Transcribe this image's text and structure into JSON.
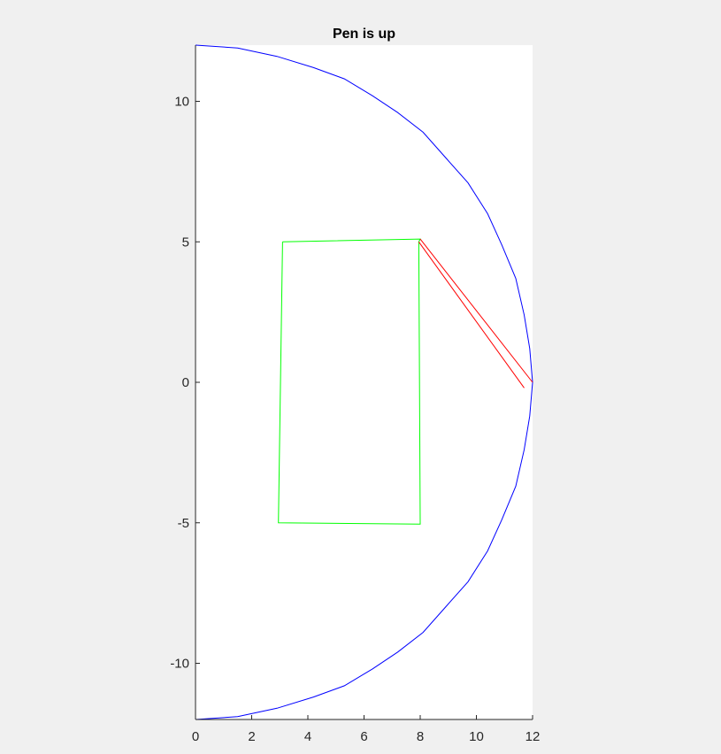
{
  "window": {
    "background": "#f0f0f0"
  },
  "chart_data": {
    "type": "line",
    "title": "Pen is up",
    "xlabel": "",
    "ylabel": "",
    "xlim": [
      0,
      12
    ],
    "ylim": [
      -12,
      12
    ],
    "xticks": [
      0,
      2,
      4,
      6,
      8,
      10,
      12
    ],
    "yticks": [
      -10,
      -5,
      0,
      5,
      10
    ],
    "grid": false,
    "legend": "none",
    "series": [
      {
        "color": "#0000ff",
        "points": [
          [
            0,
            12
          ],
          [
            1.5,
            11.9
          ],
          [
            2.9,
            11.6
          ],
          [
            4.2,
            11.2
          ],
          [
            5.3,
            10.8
          ],
          [
            6.3,
            10.2
          ],
          [
            7.2,
            9.6
          ],
          [
            8.1,
            8.9
          ],
          [
            8.9,
            8.0
          ],
          [
            9.7,
            7.1
          ],
          [
            10.4,
            6.0
          ],
          [
            10.9,
            4.9
          ],
          [
            11.4,
            3.7
          ],
          [
            11.7,
            2.4
          ],
          [
            11.9,
            1.2
          ],
          [
            12,
            0
          ],
          [
            11.9,
            -1.2
          ],
          [
            11.7,
            -2.4
          ],
          [
            11.4,
            -3.7
          ],
          [
            10.9,
            -4.9
          ],
          [
            10.4,
            -6.0
          ],
          [
            9.7,
            -7.1
          ],
          [
            8.9,
            -8.0
          ],
          [
            8.1,
            -8.9
          ],
          [
            7.2,
            -9.6
          ],
          [
            6.3,
            -10.2
          ],
          [
            5.3,
            -10.8
          ],
          [
            4.2,
            -11.2
          ],
          [
            2.9,
            -11.6
          ],
          [
            1.5,
            -11.9
          ],
          [
            0,
            -12
          ]
        ]
      },
      {
        "color": "#00ff00",
        "points": [
          [
            3.1,
            5.0
          ],
          [
            8.0,
            5.1
          ],
          [
            7.95,
            5.0
          ],
          [
            8.0,
            -5.05
          ],
          [
            2.95,
            -5.0
          ],
          [
            3.1,
            5.0
          ]
        ]
      },
      {
        "color": "#ff0000",
        "points": [
          [
            8.0,
            5.1
          ],
          [
            12.0,
            0.0
          ]
        ]
      },
      {
        "color": "#ff0000",
        "points": [
          [
            7.95,
            5.0
          ],
          [
            11.7,
            -0.2
          ]
        ]
      }
    ]
  }
}
